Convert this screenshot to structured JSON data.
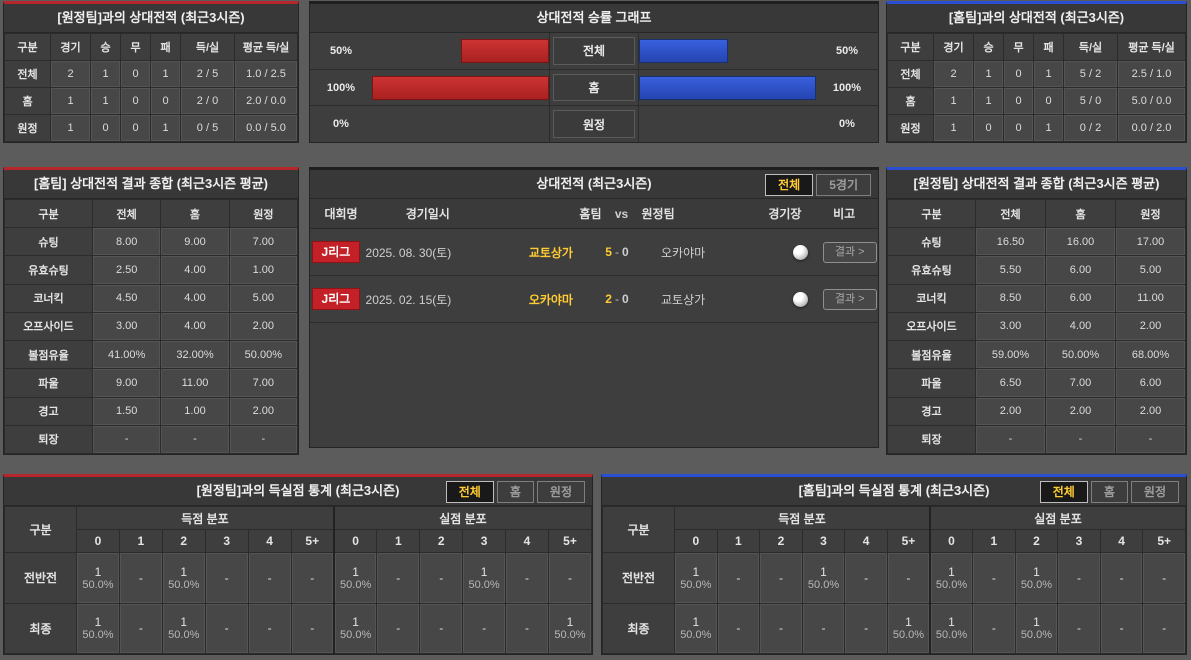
{
  "colors": {
    "accent_red": "#b5272b",
    "accent_blue": "#2a4fd0",
    "bar_red": "#c32a2a",
    "bar_blue": "#2b50cf",
    "highlight_yellow": "#ffcc33",
    "panel_bg": "#3e3e3e",
    "page_bg": "#5c5c5c"
  },
  "panels": {
    "h2h_away": {
      "title": "[원정팀]과의 상대전적 (최근3시즌)",
      "headers": [
        "구분",
        "경기",
        "승",
        "무",
        "패",
        "득/실",
        "평균 득/실"
      ],
      "rows": [
        [
          "전체",
          "2",
          "1",
          "0",
          "1",
          "2 / 5",
          "1.0 / 2.5"
        ],
        [
          "홈",
          "1",
          "1",
          "0",
          "0",
          "2 / 0",
          "2.0 / 0.0"
        ],
        [
          "원정",
          "1",
          "0",
          "0",
          "1",
          "0 / 5",
          "0.0 / 5.0"
        ]
      ]
    },
    "win_graph": {
      "title": "상대전적 승률 그래프",
      "rows": [
        {
          "label": "전체",
          "left_pct": "50%",
          "left_val": 50,
          "right_pct": "50%",
          "right_val": 50
        },
        {
          "label": "홈",
          "left_pct": "100%",
          "left_val": 100,
          "right_pct": "100%",
          "right_val": 100
        },
        {
          "label": "원정",
          "left_pct": "0%",
          "left_val": 0,
          "right_pct": "0%",
          "right_val": 0
        }
      ]
    },
    "h2h_home": {
      "title": "[홈팀]과의 상대전적 (최근3시즌)",
      "headers": [
        "구분",
        "경기",
        "승",
        "무",
        "패",
        "득/실",
        "평균 득/실"
      ],
      "rows": [
        [
          "전체",
          "2",
          "1",
          "0",
          "1",
          "5 / 2",
          "2.5 / 1.0"
        ],
        [
          "홈",
          "1",
          "1",
          "0",
          "0",
          "5 / 0",
          "5.0 / 0.0"
        ],
        [
          "원정",
          "1",
          "0",
          "0",
          "1",
          "0 / 2",
          "0.0 / 2.0"
        ]
      ]
    },
    "summary_home": {
      "title": "[홈팀] 상대전적 결과 종합 (최근3시즌 평균)",
      "headers": [
        "구분",
        "전체",
        "홈",
        "원정"
      ],
      "rows": [
        [
          "슈팅",
          "8.00",
          "9.00",
          "7.00"
        ],
        [
          "유효슈팅",
          "2.50",
          "4.00",
          "1.00"
        ],
        [
          "코너킥",
          "4.50",
          "4.00",
          "5.00"
        ],
        [
          "오프사이드",
          "3.00",
          "4.00",
          "2.00"
        ],
        [
          "볼점유율",
          "41.00%",
          "32.00%",
          "50.00%"
        ],
        [
          "파울",
          "9.00",
          "11.00",
          "7.00"
        ],
        [
          "경고",
          "1.50",
          "1.00",
          "2.00"
        ],
        [
          "퇴장",
          "-",
          "-",
          "-"
        ]
      ]
    },
    "summary_away": {
      "title": "[원정팀] 상대전적 결과 종합 (최근3시즌 평균)",
      "headers": [
        "구분",
        "전체",
        "홈",
        "원정"
      ],
      "rows": [
        [
          "슈팅",
          "16.50",
          "16.00",
          "17.00"
        ],
        [
          "유효슈팅",
          "5.50",
          "6.00",
          "5.00"
        ],
        [
          "코너킥",
          "8.50",
          "6.00",
          "11.00"
        ],
        [
          "오프사이드",
          "3.00",
          "4.00",
          "2.00"
        ],
        [
          "볼점유율",
          "59.00%",
          "50.00%",
          "68.00%"
        ],
        [
          "파울",
          "6.50",
          "7.00",
          "6.00"
        ],
        [
          "경고",
          "2.00",
          "2.00",
          "2.00"
        ],
        [
          "퇴장",
          "-",
          "-",
          "-"
        ]
      ]
    },
    "matches": {
      "title": "상대전적 (최근3시즌)",
      "tabs": [
        "전체",
        "5경기"
      ],
      "headers": {
        "league": "대회명",
        "date": "경기일시",
        "home": "홈팀",
        "vs": "vs",
        "away": "원정팀",
        "stadium": "경기장",
        "note": "비고"
      },
      "stadium_icon": "soccer-ball",
      "rows": [
        {
          "league": "J리그",
          "date": "2025. 08. 30(토)",
          "home": "교토상가",
          "home_score": "5",
          "sep": "-",
          "away_score": "0",
          "away": "오카야마",
          "result": "결과 >"
        },
        {
          "league": "J리그",
          "date": "2025. 02. 15(토)",
          "home": "오카야마",
          "home_score": "2",
          "sep": "-",
          "away_score": "0",
          "away": "교토상가",
          "result": "결과 >"
        }
      ]
    },
    "goals_away": {
      "title": "[원정팀]과의 득실점 통계 (최근3시즌)",
      "tabs": [
        "전체",
        "홈",
        "원정"
      ],
      "corner": "구분",
      "group_scored": "득점 분포",
      "group_conceded": "실점 분포",
      "bins": [
        "0",
        "1",
        "2",
        "3",
        "4",
        "5+"
      ],
      "rows": [
        {
          "label": "전반전",
          "scored": [
            {
              "n": "1",
              "p": "50.0%"
            },
            {
              "n": "-",
              "p": ""
            },
            {
              "n": "1",
              "p": "50.0%"
            },
            {
              "n": "-",
              "p": ""
            },
            {
              "n": "-",
              "p": ""
            },
            {
              "n": "-",
              "p": ""
            }
          ],
          "conceded": [
            {
              "n": "1",
              "p": "50.0%"
            },
            {
              "n": "-",
              "p": ""
            },
            {
              "n": "-",
              "p": ""
            },
            {
              "n": "1",
              "p": "50.0%"
            },
            {
              "n": "-",
              "p": ""
            },
            {
              "n": "-",
              "p": ""
            }
          ]
        },
        {
          "label": "최종",
          "scored": [
            {
              "n": "1",
              "p": "50.0%"
            },
            {
              "n": "-",
              "p": ""
            },
            {
              "n": "1",
              "p": "50.0%"
            },
            {
              "n": "-",
              "p": ""
            },
            {
              "n": "-",
              "p": ""
            },
            {
              "n": "-",
              "p": ""
            }
          ],
          "conceded": [
            {
              "n": "1",
              "p": "50.0%"
            },
            {
              "n": "-",
              "p": ""
            },
            {
              "n": "-",
              "p": ""
            },
            {
              "n": "-",
              "p": ""
            },
            {
              "n": "-",
              "p": ""
            },
            {
              "n": "1",
              "p": "50.0%"
            }
          ]
        }
      ]
    },
    "goals_home": {
      "title": "[홈팀]과의 득실점 통계 (최근3시즌)",
      "tabs": [
        "전체",
        "홈",
        "원정"
      ],
      "corner": "구분",
      "group_scored": "득점 분포",
      "group_conceded": "실점 분포",
      "bins": [
        "0",
        "1",
        "2",
        "3",
        "4",
        "5+"
      ],
      "rows": [
        {
          "label": "전반전",
          "scored": [
            {
              "n": "1",
              "p": "50.0%"
            },
            {
              "n": "-",
              "p": ""
            },
            {
              "n": "-",
              "p": ""
            },
            {
              "n": "1",
              "p": "50.0%"
            },
            {
              "n": "-",
              "p": ""
            },
            {
              "n": "-",
              "p": ""
            }
          ],
          "conceded": [
            {
              "n": "1",
              "p": "50.0%"
            },
            {
              "n": "-",
              "p": ""
            },
            {
              "n": "1",
              "p": "50.0%"
            },
            {
              "n": "-",
              "p": ""
            },
            {
              "n": "-",
              "p": ""
            },
            {
              "n": "-",
              "p": ""
            }
          ]
        },
        {
          "label": "최종",
          "scored": [
            {
              "n": "1",
              "p": "50.0%"
            },
            {
              "n": "-",
              "p": ""
            },
            {
              "n": "-",
              "p": ""
            },
            {
              "n": "-",
              "p": ""
            },
            {
              "n": "-",
              "p": ""
            },
            {
              "n": "1",
              "p": "50.0%"
            }
          ],
          "conceded": [
            {
              "n": "1",
              "p": "50.0%"
            },
            {
              "n": "-",
              "p": ""
            },
            {
              "n": "1",
              "p": "50.0%"
            },
            {
              "n": "-",
              "p": ""
            },
            {
              "n": "-",
              "p": ""
            },
            {
              "n": "-",
              "p": ""
            }
          ]
        }
      ]
    }
  }
}
